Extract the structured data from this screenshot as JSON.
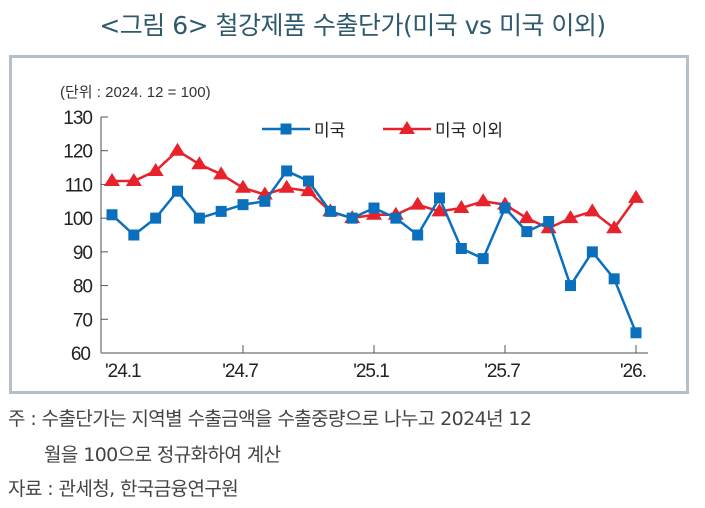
{
  "title": "<그림 6> 철강제품 수출단가(미국 vs 미국 이외)",
  "chart_data": {
    "type": "line",
    "unit_label": "(단위 : 2024. 12 = 100)",
    "ylim": [
      60,
      130
    ],
    "yticks": [
      60,
      70,
      80,
      90,
      100,
      110,
      120,
      130
    ],
    "x": [
      "2024.01",
      "2024.02",
      "2024.03",
      "2024.04",
      "2024.05",
      "2024.06",
      "2024.07",
      "2024.08",
      "2024.09",
      "2024.10",
      "2024.11",
      "2024.12",
      "2025.01",
      "2025.02",
      "2025.03",
      "2025.04",
      "2025.05",
      "2025.06",
      "2025.07",
      "2025.08",
      "2025.09",
      "2025.10",
      "2025.11",
      "2025.12",
      "2026.01"
    ],
    "xtick_labels": [
      {
        "index": 0,
        "label": "'24.1"
      },
      {
        "index": 6,
        "label": "'24.7"
      },
      {
        "index": 12,
        "label": "'25.1"
      },
      {
        "index": 18,
        "label": "'25.7"
      },
      {
        "index": 24,
        "label": "'26."
      }
    ],
    "series": [
      {
        "name": "미국",
        "color": "#0a6fbd",
        "marker": "square",
        "values": [
          101,
          95,
          100,
          108,
          100,
          102,
          104,
          105,
          114,
          111,
          102,
          100,
          103,
          100,
          95,
          106,
          91,
          88,
          103,
          96,
          99,
          80,
          90,
          82,
          66
        ]
      },
      {
        "name": "미국 이외",
        "color": "#e8222a",
        "marker": "triangle",
        "values": [
          111,
          111,
          114,
          120,
          116,
          113,
          109,
          107,
          109,
          108,
          102,
          100,
          101,
          101,
          104,
          102,
          103,
          105,
          104,
          100,
          97,
          100,
          102,
          97,
          106
        ]
      }
    ],
    "legend": "top-center",
    "grid": false
  },
  "notes": {
    "line1": "주 : 수출단가는 지역별 수출금액을 수출중량으로 나누고 2024년 12",
    "line2": "월을 100으로 정규화하여 계산",
    "source": "자료 : 관세청, 한국금융연구원"
  }
}
